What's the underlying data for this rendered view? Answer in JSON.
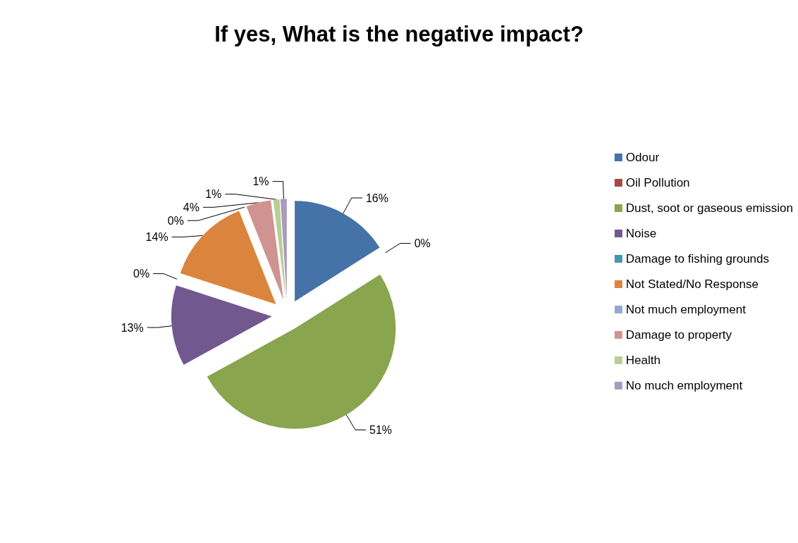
{
  "chart_data": {
    "type": "pie",
    "title": "If yes, What is the negative impact?",
    "categories": [
      "Odour",
      "Oil Pollution",
      "Dust, soot or gaseous emission",
      "Noise",
      "Damage to fishing grounds",
      "Not Stated/No Response",
      "Not much employment",
      "Damage to property",
      "Health",
      "No much employment"
    ],
    "values": [
      16,
      0,
      51,
      13,
      0,
      14,
      0,
      4,
      1,
      1
    ],
    "value_labels": [
      "16%",
      "0%",
      "51%",
      "13%",
      "0%",
      "14%",
      "0%",
      "4%",
      "1%",
      "1%"
    ],
    "colors": [
      "#4572a7",
      "#aa4643",
      "#89a54e",
      "#71588f",
      "#4198af",
      "#db843d",
      "#93a9cf",
      "#d19392",
      "#b9cd96",
      "#a99bbd"
    ],
    "legend": "right"
  }
}
